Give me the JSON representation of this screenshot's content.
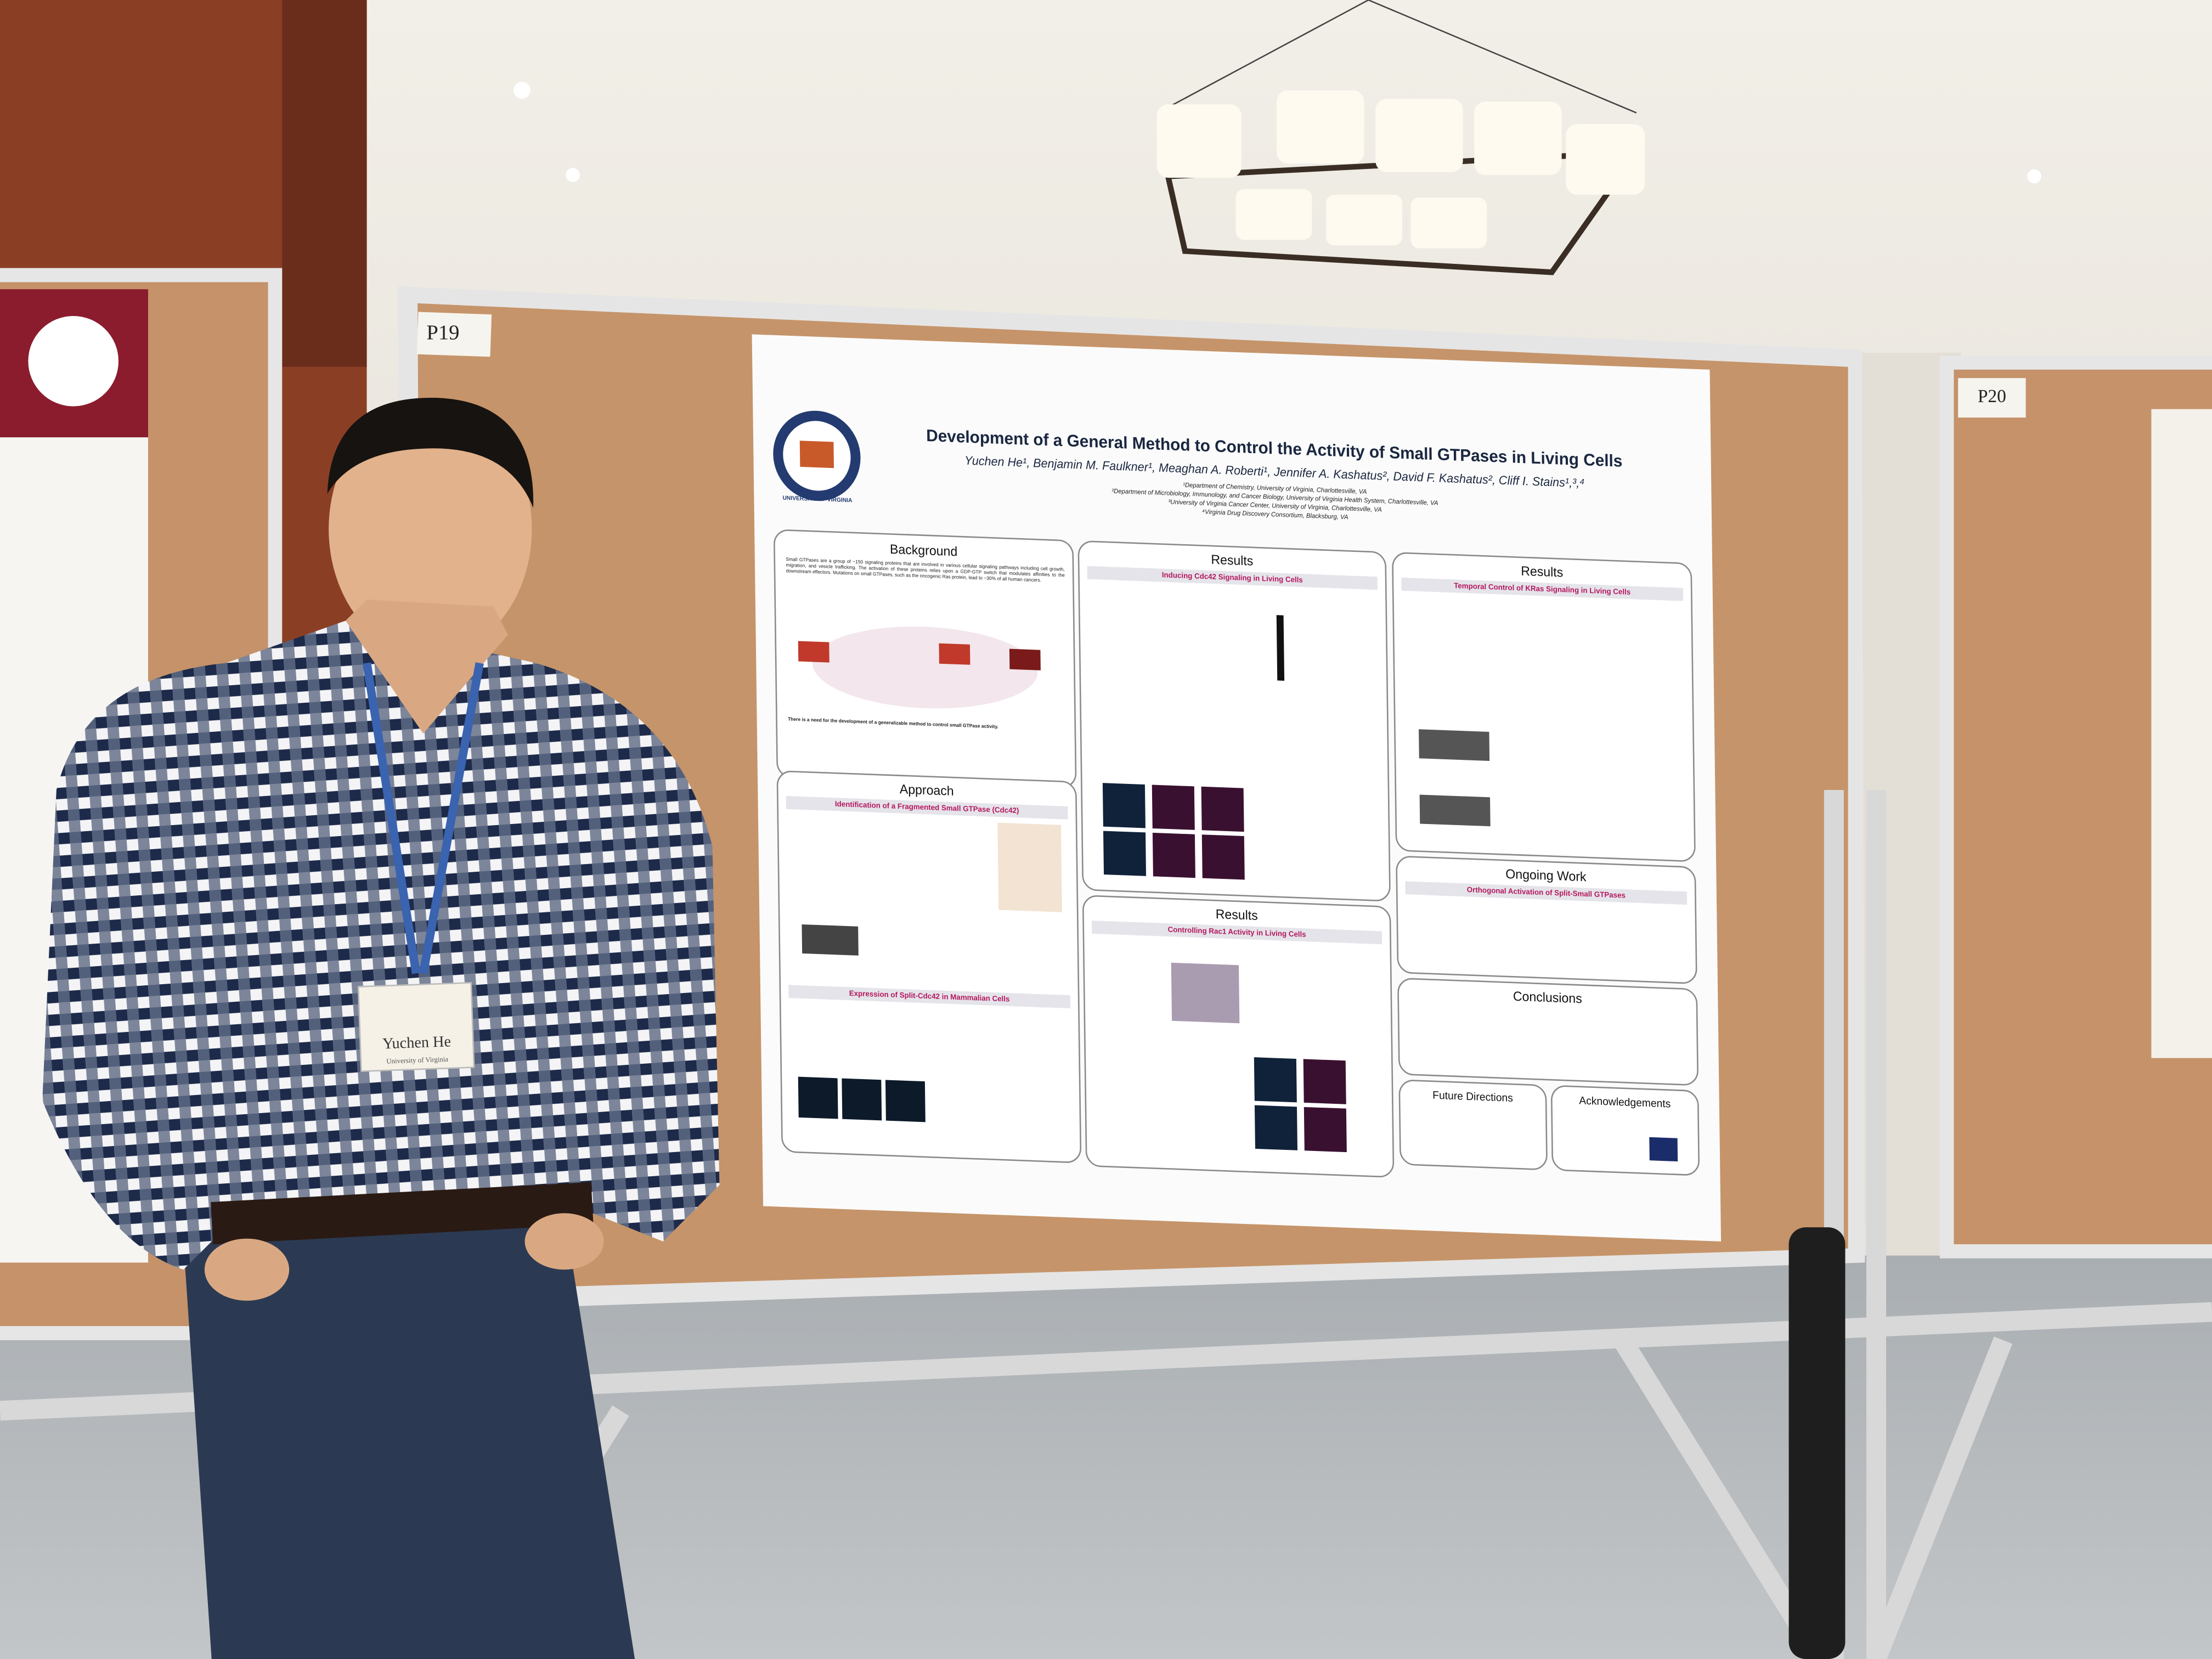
{
  "boards": {
    "left_label": "P19",
    "right_label": "P20"
  },
  "poster": {
    "logo": "UNIVERSITY OF VIRGINIA",
    "title": "Development of a General Method to Control the Activity of Small GTPases in Living Cells",
    "authors": "Yuchen He¹, Benjamin M. Faulkner¹, Meaghan A. Roberti¹, Jennifer A. Kashatus², David F. Kashatus², Cliff I. Stains¹,³,⁴",
    "affiliations": [
      "¹Department of Chemistry, University of Virginia, Charlottesville, VA",
      "²Department of Microbiology, Immunology, and Cancer Biology, University of Virginia Health System, Charlottesville, VA",
      "³University of Virginia Cancer Center, University of Virginia, Charlottesville, VA",
      "⁴Virginia Drug Discovery Consortium, Blacksburg, VA"
    ],
    "background": {
      "heading": "Background",
      "text": "Small GTPases are a group of ~150 signaling proteins that are involved in various cellular signaling pathways including cell growth, migration, and vesicle trafficking. The activation of these proteins relies upon a GDP-GTP switch that modulates affinities to the downstream effectors. Mutations on small GTPases, such as the oncogenic Ras protein, lead to ~30% of all human cancers.",
      "need": "There is a need for the development of a generalizable method to control small GTPase activity."
    },
    "approach": {
      "heading": "Approach",
      "sub1": "Identification of a Fragmented Small GTPase (Cdc42)",
      "sub2": "Expression of Split-Cdc42 in Mammalian Cells"
    },
    "results1": {
      "heading": "Results",
      "sub": "Inducing Cdc42 Signaling in Living Cells"
    },
    "results2": {
      "heading": "Results",
      "sub": "Controlling Rac1 Activity in Living Cells"
    },
    "results3": {
      "heading": "Results",
      "sub": "Temporal Control of KRas Signaling in Living Cells"
    },
    "ongoing": {
      "heading": "Ongoing Work",
      "sub": "Orthogonal Activation of Split-Small GTPases"
    },
    "conclusions": {
      "heading": "Conclusions"
    },
    "future": {
      "heading": "Future Directions"
    },
    "acknowledgements": {
      "heading": "Acknowledgements"
    }
  },
  "badge": {
    "name": "Yuchen He",
    "affiliation": "University of Virginia"
  }
}
